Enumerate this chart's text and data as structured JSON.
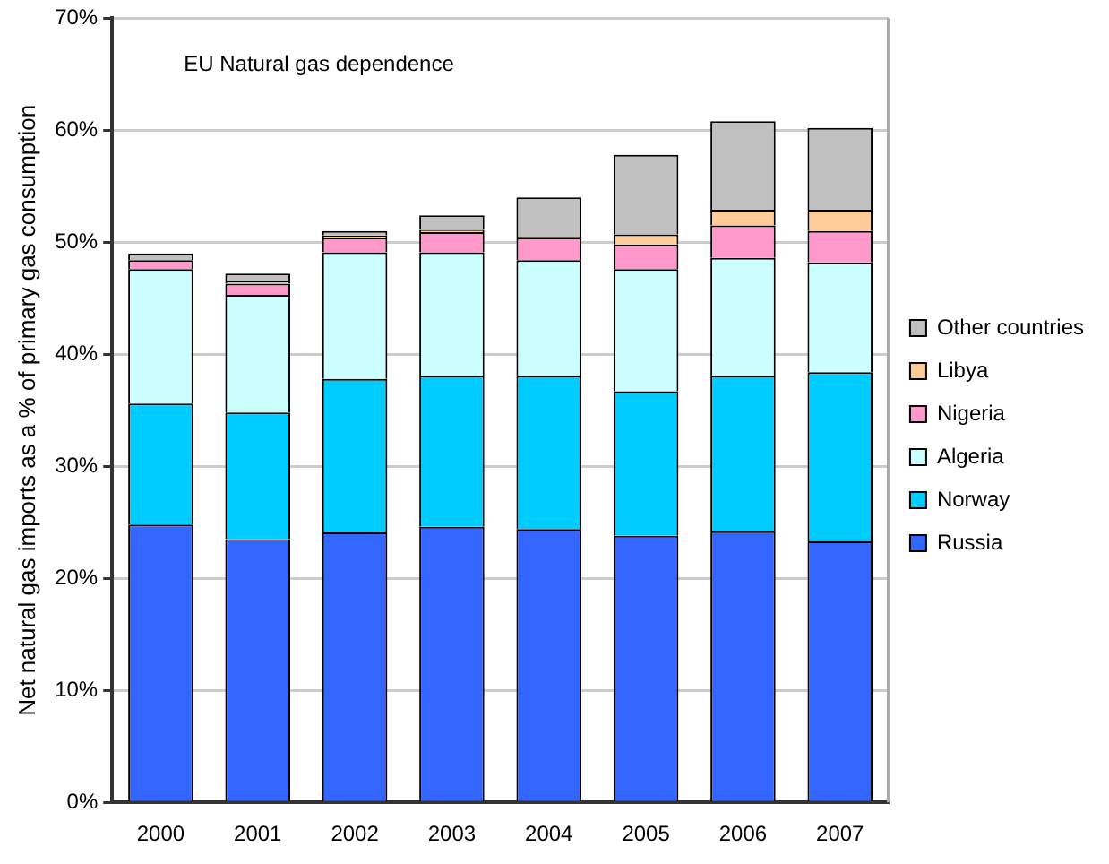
{
  "chart_data": {
    "type": "bar",
    "stacked": true,
    "categories": [
      "2000",
      "2001",
      "2002",
      "2003",
      "2004",
      "2005",
      "2006",
      "2007"
    ],
    "series": [
      {
        "name": "Russia",
        "color": "#3366ff",
        "values": [
          24.8,
          23.5,
          24.1,
          24.6,
          24.4,
          23.8,
          24.2,
          23.3
        ]
      },
      {
        "name": "Norway",
        "color": "#00ccff",
        "values": [
          10.8,
          11.3,
          13.7,
          13.5,
          13.7,
          12.9,
          13.9,
          15.1
        ]
      },
      {
        "name": "Algeria",
        "color": "#ccffff",
        "values": [
          12.0,
          10.5,
          11.3,
          11.0,
          10.3,
          10.9,
          10.5,
          9.8
        ]
      },
      {
        "name": "Nigeria",
        "color": "#ff99cc",
        "values": [
          0.8,
          1.0,
          1.3,
          1.8,
          2.0,
          2.2,
          2.9,
          2.8
        ]
      },
      {
        "name": "Libya",
        "color": "#ffcc99",
        "values": [
          0,
          0.2,
          0.2,
          0.2,
          0.1,
          0.9,
          1.4,
          1.9
        ]
      },
      {
        "name": "Other countries",
        "color": "#c0c0c0",
        "values": [
          0.6,
          0.7,
          0.4,
          1.3,
          3.5,
          7.1,
          7.9,
          7.3
        ]
      }
    ],
    "ylabel": "Net natural gas imports as a % of primary gas consumption",
    "ylim": [
      0,
      70
    ],
    "yticks": [
      {
        "value": 0,
        "label": "0%"
      },
      {
        "value": 10,
        "label": "10%"
      },
      {
        "value": 20,
        "label": "20%"
      },
      {
        "value": 30,
        "label": "30%"
      },
      {
        "value": 40,
        "label": "40%"
      },
      {
        "value": 50,
        "label": "50%"
      },
      {
        "value": 60,
        "label": "60%"
      },
      {
        "value": 70,
        "label": "70%"
      }
    ],
    "grid": "y",
    "legend": "right",
    "annotations": [
      "EU Natural gas dependence"
    ]
  }
}
